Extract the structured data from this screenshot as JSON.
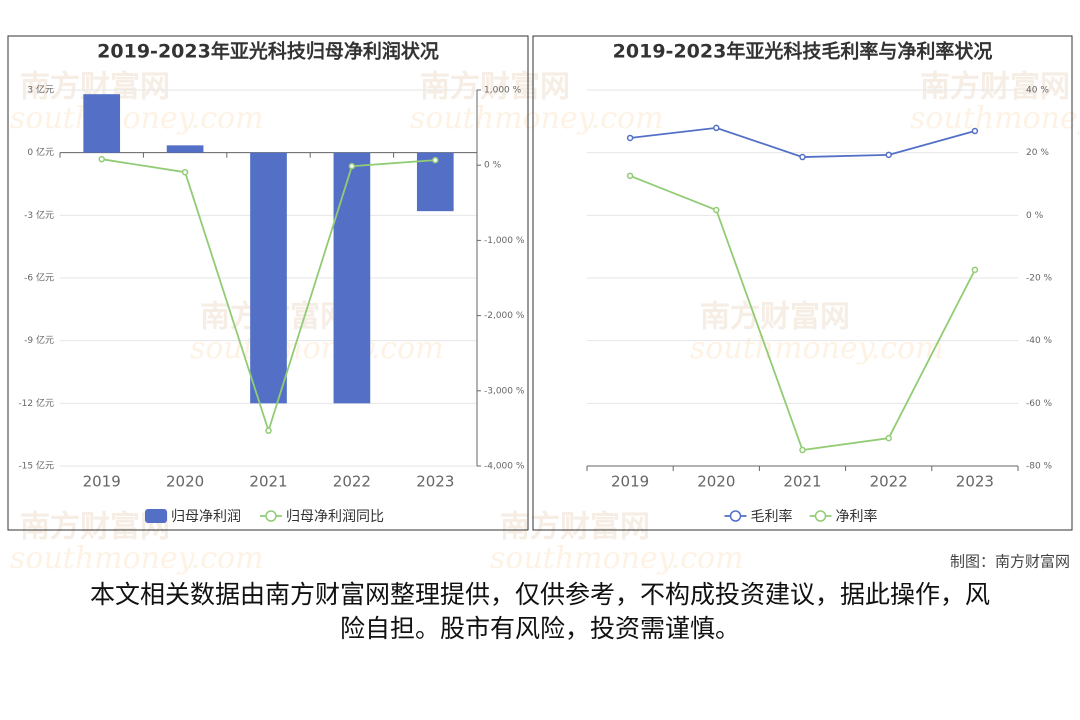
{
  "chart_data": [
    {
      "type": "bar",
      "title": "2019-2023年亚光科技归母净利润状况",
      "categories": [
        "2019",
        "2020",
        "2021",
        "2022",
        "2023"
      ],
      "series": [
        {
          "name": "归母净利润",
          "type": "bar",
          "color": "#5470c6",
          "values": [
            2.8,
            0.35,
            -12.0,
            -12.0,
            -2.8
          ]
        },
        {
          "name": "归母净利润同比",
          "type": "line",
          "axis": "y2",
          "color": "#91cc75",
          "values": [
            80,
            -93,
            -3530,
            -13,
            67
          ]
        }
      ],
      "ylim": [
        -15,
        3
      ],
      "yticks": [
        {
          "value": 3,
          "label": "3 亿元"
        },
        {
          "value": 0,
          "label": "0 亿元"
        },
        {
          "value": -3,
          "label": "-3 亿元"
        },
        {
          "value": -6,
          "label": "-6 亿元"
        },
        {
          "value": -9,
          "label": "-9 亿元"
        },
        {
          "value": -12,
          "label": "-12 亿元"
        },
        {
          "value": -15,
          "label": "-15 亿元"
        }
      ],
      "y2lim": [
        -4000,
        1000
      ],
      "y2ticks": [
        {
          "value": 1000,
          "label": "1,000 %"
        },
        {
          "value": 0,
          "label": "0 %"
        },
        {
          "value": -1000,
          "label": "-1,000 %"
        },
        {
          "value": -2000,
          "label": "-2,000 %"
        },
        {
          "value": -3000,
          "label": "-3,000 %"
        },
        {
          "value": -4000,
          "label": "-4,000 %"
        }
      ],
      "grid": true,
      "y_axis_position": "left"
    },
    {
      "type": "line",
      "title": "2019-2023年亚光科技毛利率与净利率状况",
      "categories": [
        "2019",
        "2020",
        "2021",
        "2022",
        "2023"
      ],
      "series": [
        {
          "name": "毛利率",
          "type": "line",
          "color": "#5470c6",
          "values": [
            24.7,
            27.9,
            18.6,
            19.3,
            26.9
          ]
        },
        {
          "name": "净利率",
          "type": "line",
          "color": "#91cc75",
          "values": [
            12.6,
            1.7,
            -74.9,
            -71.1,
            -17.4
          ]
        }
      ],
      "ylim": [
        -80,
        40
      ],
      "yticks": [
        {
          "value": 40,
          "label": "40 %"
        },
        {
          "value": 20,
          "label": "20 %"
        },
        {
          "value": 0,
          "label": "0 %"
        },
        {
          "value": -20,
          "label": "-20 %"
        },
        {
          "value": -40,
          "label": "-40 %"
        },
        {
          "value": -60,
          "label": "-60 %"
        },
        {
          "value": -80,
          "label": "-80 %"
        }
      ],
      "grid": true,
      "y_axis_position": "right"
    }
  ],
  "credit": "制图：南方财富网",
  "disclaimer": "本文相关数据由南方财富网整理提供，仅供参考，不构成投资建议，据此操作，风险自担。股市有风险，投资需谨慎。",
  "watermark": [
    "南方财富网",
    "southmoney.com"
  ]
}
